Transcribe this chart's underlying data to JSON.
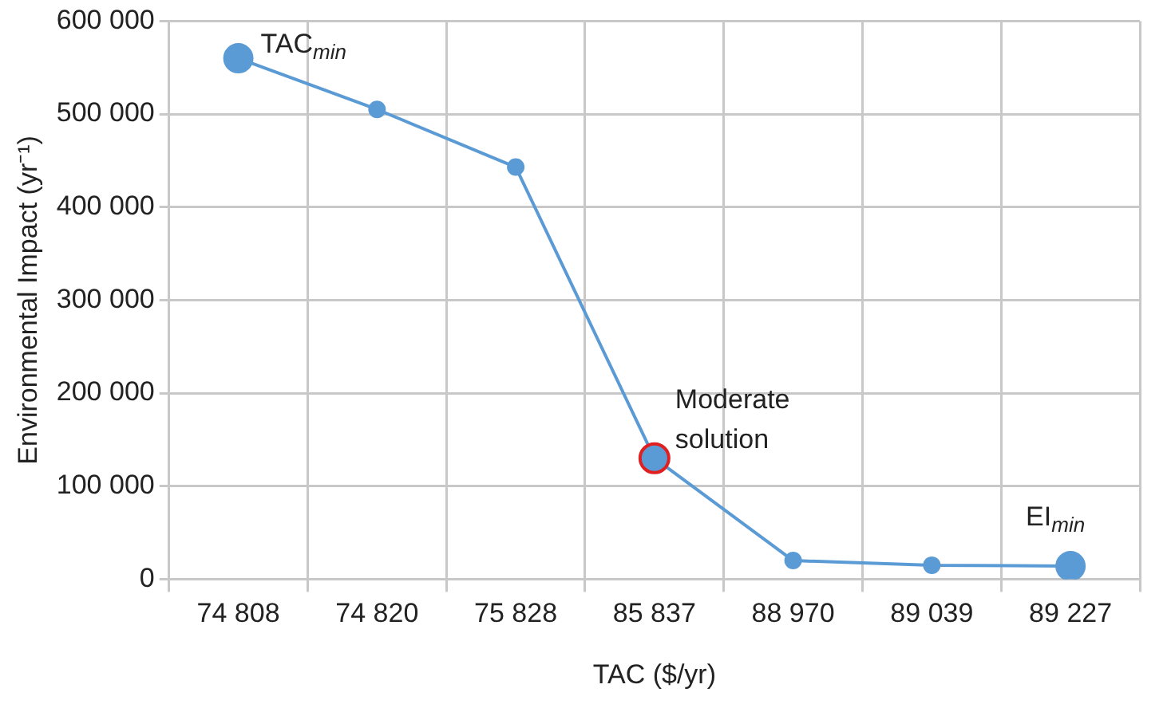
{
  "chart_data": {
    "type": "line",
    "xlabel": "TAC ($/yr)",
    "ylabel": "Environmental Impact (yr⁻¹)",
    "categories": [
      "74 808",
      "74 820",
      "75 828",
      "85 837",
      "88 970",
      "89 039",
      "89 227"
    ],
    "series": [
      {
        "color": "#5b9bd5",
        "values": [
          560000,
          505000,
          443000,
          130000,
          20000,
          15000,
          14000
        ],
        "colors": [
          "#5b9bd5",
          "#5b9bd5",
          "#5b9bd5",
          "#e02020",
          "#5b9bd5",
          "#5b9bd5",
          "#5b9bd5"
        ]
      }
    ],
    "ylim": [
      0,
      600000
    ],
    "yticks": [
      {
        "value": 0,
        "label": "0"
      },
      {
        "value": 100000,
        "label": "100 000"
      },
      {
        "value": 200000,
        "label": "200 000"
      },
      {
        "value": 300000,
        "label": "300 000"
      },
      {
        "value": 400000,
        "label": "400 000"
      },
      {
        "value": 500000,
        "label": "500 000"
      },
      {
        "value": 600000,
        "label": "600 000"
      }
    ],
    "annotations": [
      {
        "text": "TAC$_{min}$",
        "x": "74 808",
        "y": 560000
      },
      {
        "text": "Moderate solution",
        "x": "85 837",
        "y": 130000
      },
      {
        "text": "EI$_{min}$",
        "x": "89 227",
        "y": 14000
      }
    ],
    "grid": true,
    "legend": false,
    "marker": "circle",
    "line_style": "solid"
  }
}
